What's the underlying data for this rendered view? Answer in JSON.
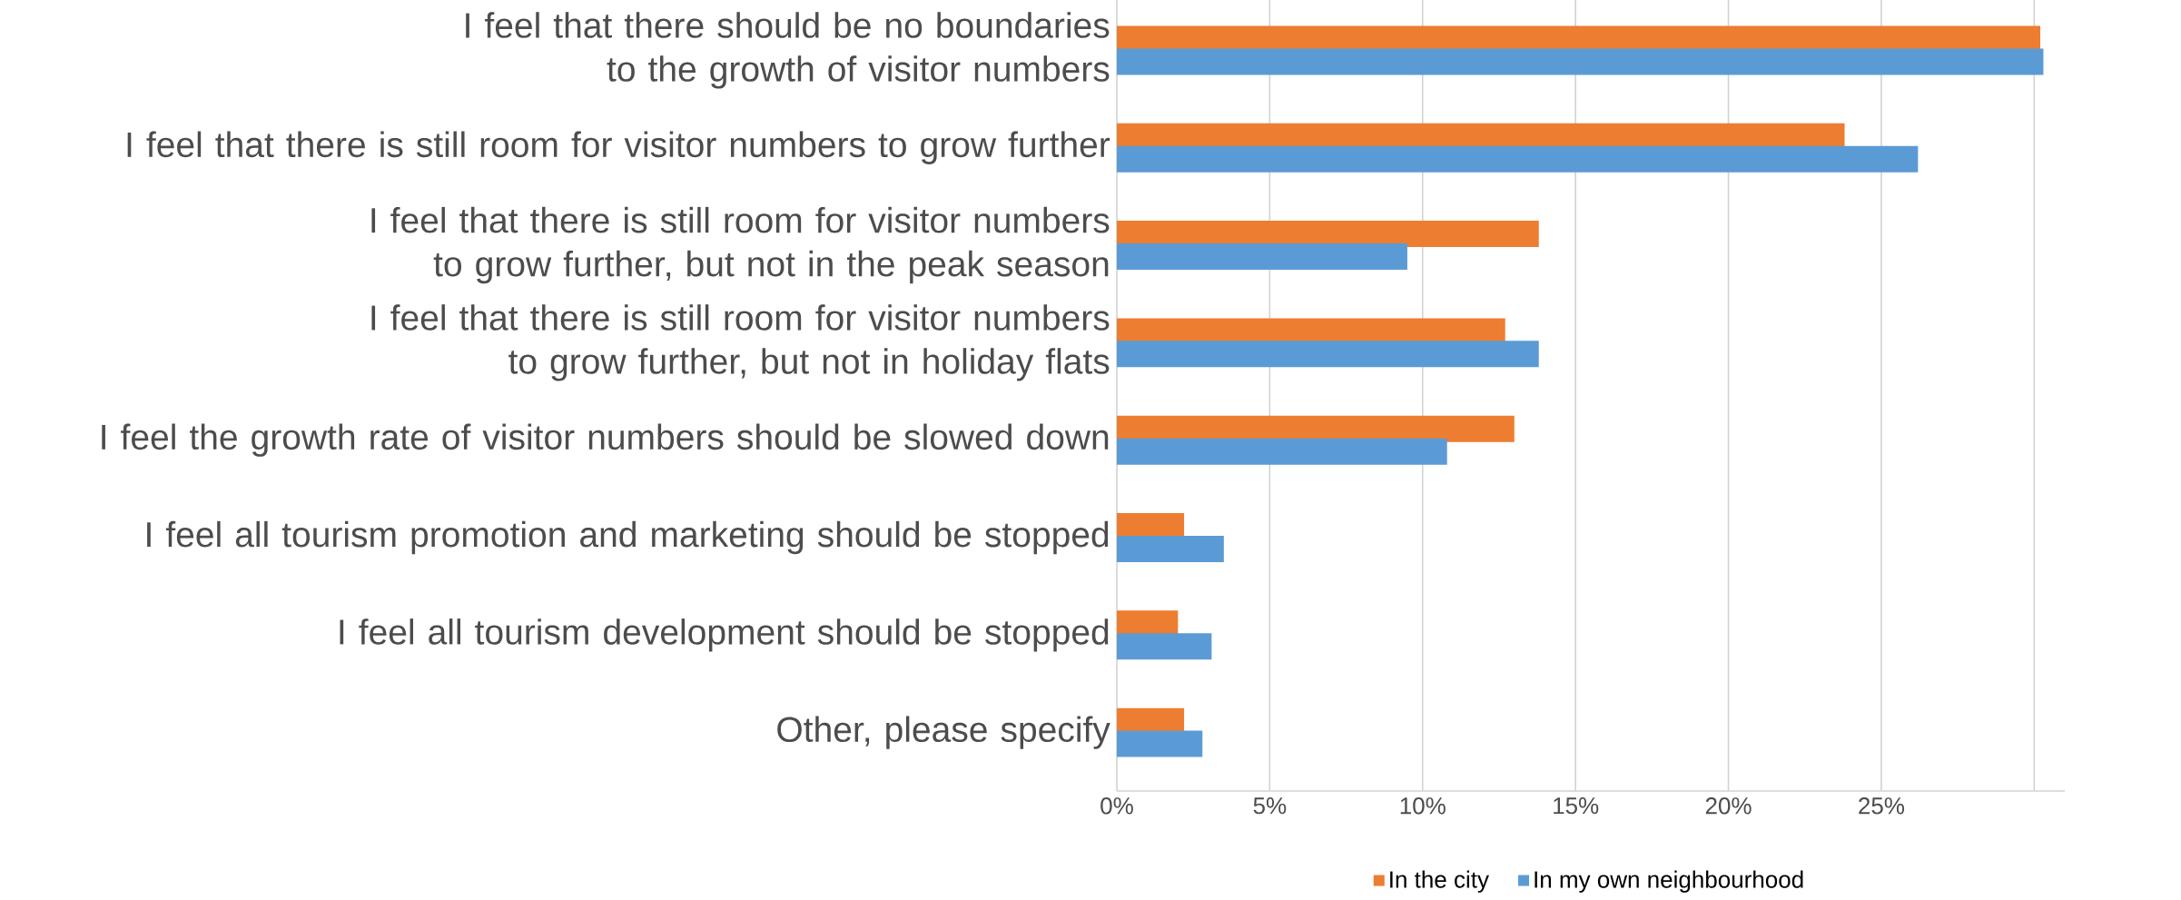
{
  "chart_data": {
    "type": "bar",
    "orientation": "horizontal",
    "categories": [
      "I feel that there should be no boundaries to the growth of visitor numbers",
      "I feel that there is still room for visitor numbers to grow further",
      "I feel that there is still room for visitor numbers to grow further, but not in the peak season",
      "I feel that there is still room for visitor numbers to grow further, but not in holiday flats",
      "I feel the growth rate of visitor numbers should be slowed down",
      "I feel all tourism promotion and marketing should be stopped",
      "I feel all tourism development should be stopped",
      "Other, please specify"
    ],
    "series": [
      {
        "name": "In the city",
        "color": "#ed7d31",
        "values": [
          30.2,
          23.8,
          13.8,
          12.7,
          13.0,
          2.2,
          2.0,
          2.2
        ]
      },
      {
        "name": "In my own neighbourhood",
        "color": "#5b9bd5",
        "values": [
          30.3,
          26.2,
          9.5,
          13.8,
          10.8,
          3.5,
          3.1,
          2.8
        ]
      }
    ],
    "xlim": [
      0,
      31
    ],
    "xticks": [
      {
        "value": 0,
        "label": "0%"
      },
      {
        "value": 5,
        "label": "5%"
      },
      {
        "value": 10,
        "label": "10%"
      },
      {
        "value": 15,
        "label": "15%"
      },
      {
        "value": 20,
        "label": "20%"
      },
      {
        "value": 25,
        "label": "25%"
      },
      {
        "value": 30,
        "label": null
      }
    ],
    "grid": "x",
    "legend": "bottom"
  }
}
